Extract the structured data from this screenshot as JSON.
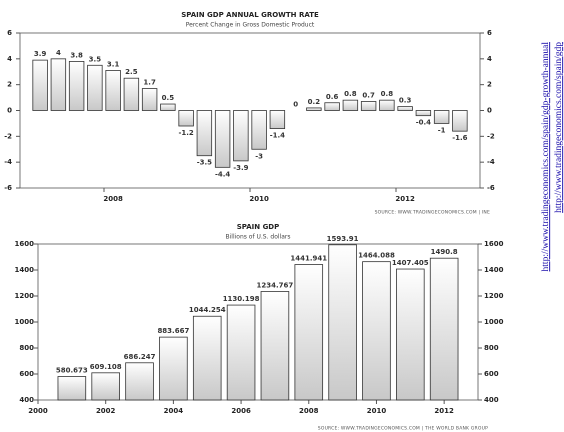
{
  "chart_data": [
    {
      "type": "bar",
      "title": "SPAIN GDP ANNUAL GROWTH RATE",
      "subtitle": "Percent Change in Gross Domestic Product",
      "categories": [
        null,
        null,
        null,
        null,
        "2008",
        null,
        null,
        null,
        null,
        null,
        null,
        null,
        "2010",
        null,
        null,
        null,
        null,
        null,
        null,
        null,
        "2012",
        null,
        null,
        null
      ],
      "values": [
        3.9,
        4,
        3.8,
        3.5,
        3.1,
        2.5,
        1.7,
        0.5,
        -1.2,
        -3.5,
        -4.4,
        -3.9,
        -3,
        -1.4,
        0,
        0.2,
        0.6,
        0.8,
        0.7,
        0.8,
        0.3,
        -0.4,
        -1,
        -1.6
      ],
      "source": "SOURCE: WWW.TRADINGECONOMICS.COM | INE",
      "color": "#c8c8c8",
      "edgecolor": "#333333",
      "ylim": [
        -6,
        6
      ],
      "yticks": [
        -6,
        -4,
        -2,
        0,
        2,
        4,
        6
      ],
      "grid": false
    },
    {
      "type": "bar",
      "title": "SPAIN GDP",
      "subtitle": "Billions of U.S. dollars",
      "x": [
        2001,
        2002,
        2003,
        2004,
        2005,
        2006,
        2007,
        2008,
        2009,
        2010,
        2011,
        2012
      ],
      "values": [
        580.673,
        609.108,
        686.247,
        883.667,
        1044.254,
        1130.198,
        1234.767,
        1441.941,
        1593.91,
        1464.088,
        1407.405,
        1490.8
      ],
      "source": "SOURCE: WWW.TRADINGECONOMICS.COM | THE WORLD BANK GROUP",
      "color": "#c8c8c8",
      "edgecolor": "#333333",
      "xlim": [
        2000,
        2013
      ],
      "xticks": [
        2000,
        2002,
        2004,
        2006,
        2008,
        2010,
        2012
      ],
      "ylim": [
        400,
        1600
      ],
      "yticks": [
        400,
        600,
        800,
        1000,
        1200,
        1400,
        1600
      ],
      "grid": false
    }
  ],
  "links": [
    "http://www.tradingeconomics.com/spain/gdp-growth-annual",
    "http://www.tradingeconomics.com/spain/gdp"
  ]
}
